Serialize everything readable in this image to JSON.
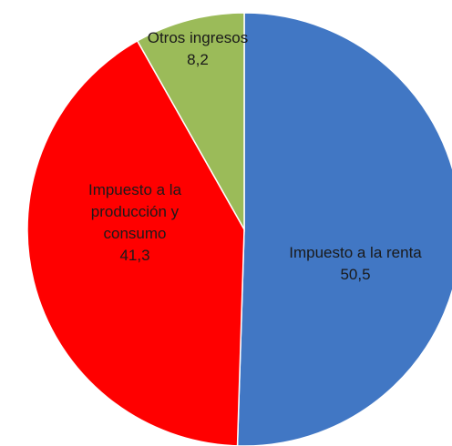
{
  "chart_data": {
    "type": "pie",
    "categories": [
      "Impuesto a la renta",
      "Impuesto a la producción y consumo",
      "Otros ingresos"
    ],
    "values": [
      50.5,
      41.3,
      8.2
    ],
    "value_labels": [
      "50,5",
      "41,3",
      "8,2"
    ],
    "colors": [
      "#4177c4",
      "#ff0000",
      "#9bbb59"
    ]
  }
}
